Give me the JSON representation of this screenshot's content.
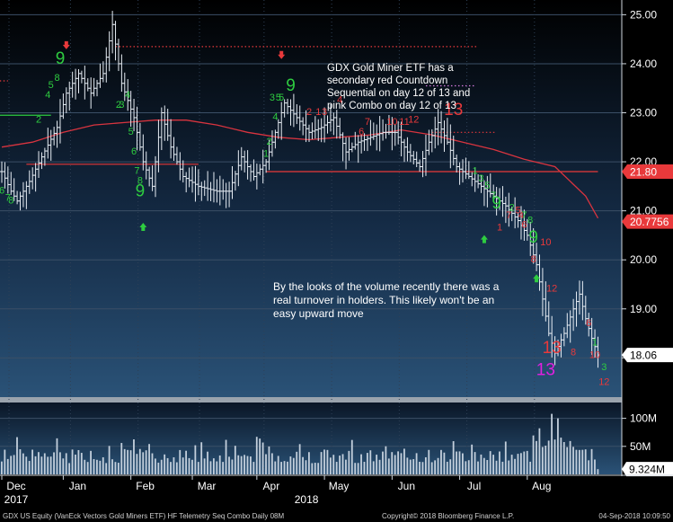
{
  "chart_data": {
    "type": "ohlc",
    "price_panel": {
      "ylim": [
        17.2,
        25.3
      ],
      "ticks": [
        "25.00",
        "24.00",
        "23.00",
        "22.00",
        "21.00",
        "20.00",
        "19.00",
        "18.00"
      ],
      "grid": true,
      "moving_average": [
        {
          "t": 0,
          "v": 22.3
        },
        {
          "t": 10,
          "v": 22.4
        },
        {
          "t": 20,
          "v": 22.6
        },
        {
          "t": 30,
          "v": 22.75
        },
        {
          "t": 40,
          "v": 22.8
        },
        {
          "t": 50,
          "v": 22.85
        },
        {
          "t": 60,
          "v": 22.85
        },
        {
          "t": 70,
          "v": 22.75
        },
        {
          "t": 80,
          "v": 22.6
        },
        {
          "t": 90,
          "v": 22.5
        },
        {
          "t": 100,
          "v": 22.45
        },
        {
          "t": 110,
          "v": 22.5
        },
        {
          "t": 120,
          "v": 22.55
        },
        {
          "t": 130,
          "v": 22.65
        },
        {
          "t": 140,
          "v": 22.55
        },
        {
          "t": 150,
          "v": 22.4
        },
        {
          "t": 160,
          "v": 22.25
        },
        {
          "t": 170,
          "v": 22.05
        },
        {
          "t": 180,
          "v": 21.9
        },
        {
          "t": 190,
          "v": 21.3
        },
        {
          "t": 194,
          "v": 20.85
        }
      ],
      "price_path": [
        {
          "t": 0,
          "v": 21.8
        },
        {
          "t": 3,
          "v": 21.4
        },
        {
          "t": 5,
          "v": 21.2
        },
        {
          "t": 9,
          "v": 21.6
        },
        {
          "t": 13,
          "v": 22.1
        },
        {
          "t": 18,
          "v": 22.7
        },
        {
          "t": 21,
          "v": 23.4
        },
        {
          "t": 25,
          "v": 23.8
        },
        {
          "t": 29,
          "v": 23.4
        },
        {
          "t": 33,
          "v": 23.8
        },
        {
          "t": 36,
          "v": 24.8
        },
        {
          "t": 39,
          "v": 23.6
        },
        {
          "t": 43,
          "v": 22.9
        },
        {
          "t": 46,
          "v": 22.0
        },
        {
          "t": 49,
          "v": 21.5
        },
        {
          "t": 52,
          "v": 23.0
        },
        {
          "t": 55,
          "v": 22.3
        },
        {
          "t": 59,
          "v": 21.7
        },
        {
          "t": 64,
          "v": 21.5
        },
        {
          "t": 70,
          "v": 21.4
        },
        {
          "t": 74,
          "v": 21.4
        },
        {
          "t": 78,
          "v": 22.1
        },
        {
          "t": 82,
          "v": 21.7
        },
        {
          "t": 86,
          "v": 22.0
        },
        {
          "t": 89,
          "v": 22.6
        },
        {
          "t": 92,
          "v": 23.2
        },
        {
          "t": 96,
          "v": 22.9
        },
        {
          "t": 100,
          "v": 22.6
        },
        {
          "t": 104,
          "v": 22.7
        },
        {
          "t": 108,
          "v": 22.9
        },
        {
          "t": 112,
          "v": 22.2
        },
        {
          "t": 116,
          "v": 22.4
        },
        {
          "t": 120,
          "v": 22.5
        },
        {
          "t": 124,
          "v": 22.6
        },
        {
          "t": 128,
          "v": 22.6
        },
        {
          "t": 132,
          "v": 22.2
        },
        {
          "t": 136,
          "v": 21.9
        },
        {
          "t": 139,
          "v": 22.4
        },
        {
          "t": 142,
          "v": 22.8
        },
        {
          "t": 145,
          "v": 22.4
        },
        {
          "t": 148,
          "v": 21.9
        },
        {
          "t": 152,
          "v": 21.7
        },
        {
          "t": 156,
          "v": 21.5
        },
        {
          "t": 160,
          "v": 21.3
        },
        {
          "t": 164,
          "v": 21.1
        },
        {
          "t": 168,
          "v": 20.8
        },
        {
          "t": 171,
          "v": 20.5
        },
        {
          "t": 174,
          "v": 19.9
        },
        {
          "t": 176,
          "v": 19.2
        },
        {
          "t": 178,
          "v": 18.5
        },
        {
          "t": 180,
          "v": 18.1
        },
        {
          "t": 183,
          "v": 18.5
        },
        {
          "t": 186,
          "v": 19.0
        },
        {
          "t": 188,
          "v": 19.3
        },
        {
          "t": 190,
          "v": 18.8
        },
        {
          "t": 192,
          "v": 18.4
        },
        {
          "t": 194,
          "v": 18.06
        }
      ],
      "levels": [
        {
          "t0": -3,
          "t1": 16,
          "v": 22.95,
          "color": "#2ecc40",
          "style": "solid"
        },
        {
          "t0": -3,
          "t1": 2,
          "v": 23.65,
          "color": "#e8393b",
          "style": "dotted"
        },
        {
          "t0": 8,
          "t1": 64,
          "v": 21.95,
          "color": "#e8393b",
          "style": "solid"
        },
        {
          "t0": 37,
          "t1": 155,
          "v": 24.35,
          "color": "#e8393b",
          "style": "dotted"
        },
        {
          "t0": 86,
          "t1": 194,
          "v": 21.8,
          "color": "#e8393b",
          "style": "solid"
        },
        {
          "t0": 140,
          "t1": 161,
          "v": 22.6,
          "color": "#e8393b",
          "style": "dotted"
        },
        {
          "t0": 138,
          "t1": 154,
          "v": 23.55,
          "color": "#d67bdf",
          "style": "dotted"
        }
      ],
      "price_boxes": [
        {
          "value": "21.80",
          "v": 21.8,
          "bg": "#e8393b",
          "fg": "#ffffff"
        },
        {
          "value": "20.7756",
          "v": 20.78,
          "bg": "#e8393b",
          "fg": "#ffffff"
        },
        {
          "value": "18.06",
          "v": 18.06,
          "bg": "#ffffff",
          "fg": "#000000"
        }
      ]
    },
    "volume_panel": {
      "ticks": [
        "100M",
        "50M"
      ],
      "tick_values": [
        100,
        50
      ],
      "ylim": [
        0,
        125
      ],
      "last_box": "9.324M",
      "last_value": 9.324
    },
    "x_axis": {
      "months": [
        "Dec",
        "Jan",
        "Feb",
        "Mar",
        "Apr",
        "May",
        "Jun",
        "Jul",
        "Aug"
      ],
      "month_ticks": [
        0,
        20,
        42,
        62,
        83,
        105,
        127,
        149,
        171
      ],
      "years": [
        "2017",
        "2018"
      ]
    },
    "sequential_labels": [
      {
        "text": "6",
        "t": 0,
        "v": 21.35,
        "color": "#2ecc40"
      },
      {
        "text": "7",
        "t": 2,
        "v": 21.2,
        "color": "#2ecc40"
      },
      {
        "text": "8",
        "t": 3,
        "v": 21.15,
        "color": "#2ecc40"
      },
      {
        "text": "9",
        "t": 19,
        "v": 24.0,
        "color": "#2ecc40",
        "big": true
      },
      {
        "text": "2",
        "t": 12,
        "v": 22.8,
        "color": "#2ecc40"
      },
      {
        "text": "4",
        "t": 15,
        "v": 23.3,
        "color": "#2ecc40"
      },
      {
        "text": "5",
        "t": 16,
        "v": 23.5,
        "color": "#2ecc40"
      },
      {
        "text": "8",
        "t": 18,
        "v": 23.65,
        "color": "#2ecc40"
      },
      {
        "text": "2",
        "t": 38,
        "v": 23.1,
        "color": "#2ecc40"
      },
      {
        "text": "3",
        "t": 39,
        "v": 23.1,
        "color": "#2ecc40"
      },
      {
        "text": "4",
        "t": 41,
        "v": 23.3,
        "color": "#2ecc40"
      },
      {
        "text": "5",
        "t": 42,
        "v": 22.55,
        "color": "#2ecc40"
      },
      {
        "text": "6",
        "t": 43,
        "v": 22.15,
        "color": "#2ecc40"
      },
      {
        "text": "7",
        "t": 44,
        "v": 21.75,
        "color": "#2ecc40"
      },
      {
        "text": "8",
        "t": 45,
        "v": 21.55,
        "color": "#2ecc40"
      },
      {
        "text": "9",
        "t": 45,
        "v": 21.3,
        "color": "#2ecc40",
        "big": true
      },
      {
        "text": "1",
        "t": 86,
        "v": 22.1,
        "color": "#2ecc40"
      },
      {
        "text": "2",
        "t": 87,
        "v": 22.35,
        "color": "#2ecc40"
      },
      {
        "text": "4",
        "t": 89,
        "v": 22.85,
        "color": "#2ecc40"
      },
      {
        "text": "3",
        "t": 88,
        "v": 23.25,
        "color": "#2ecc40"
      },
      {
        "text": "5",
        "t": 90,
        "v": 23.25,
        "color": "#2ecc40"
      },
      {
        "text": "5",
        "t": 91,
        "v": 23.25,
        "color": "#2ecc40"
      },
      {
        "text": "9",
        "t": 94,
        "v": 23.45,
        "color": "#2ecc40",
        "big": true
      },
      {
        "text": "1",
        "t": 103,
        "v": 22.95,
        "color": "#e8393b"
      },
      {
        "text": "2",
        "t": 100,
        "v": 22.95,
        "color": "#e8393b"
      },
      {
        "text": "3",
        "t": 105,
        "v": 22.95,
        "color": "#e8393b"
      },
      {
        "text": "4",
        "t": 110,
        "v": 23.2,
        "color": "#e8393b"
      },
      {
        "text": "6",
        "t": 117,
        "v": 22.55,
        "color": "#e8393b"
      },
      {
        "text": "7",
        "t": 119,
        "v": 22.75,
        "color": "#e8393b"
      },
      {
        "text": "10",
        "t": 127,
        "v": 22.75,
        "color": "#e8393b"
      },
      {
        "text": "11",
        "t": 131,
        "v": 22.75,
        "color": "#e8393b"
      },
      {
        "text": "12",
        "t": 134,
        "v": 22.8,
        "color": "#e8393b"
      },
      {
        "text": "13",
        "t": 147,
        "v": 22.95,
        "color": "#e8393b",
        "big": true
      },
      {
        "text": "1",
        "t": 154,
        "v": 21.75,
        "color": "#2ecc40"
      },
      {
        "text": "3",
        "t": 156,
        "v": 21.6,
        "color": "#2ecc40"
      },
      {
        "text": "5",
        "t": 158,
        "v": 21.45,
        "color": "#2ecc40"
      },
      {
        "text": "7",
        "t": 160,
        "v": 21.25,
        "color": "#2ecc40"
      },
      {
        "text": "9",
        "t": 161,
        "v": 21.05,
        "color": "#2ecc40",
        "big": true
      },
      {
        "text": "1",
        "t": 162,
        "v": 20.6,
        "color": "#e8393b"
      },
      {
        "text": "2",
        "t": 166,
        "v": 21.0,
        "color": "#2ecc40"
      },
      {
        "text": "4",
        "t": 169,
        "v": 20.85,
        "color": "#e8393b"
      },
      {
        "text": "5",
        "t": 168,
        "v": 20.95,
        "color": "#e8393b"
      },
      {
        "text": "6",
        "t": 170,
        "v": 20.65,
        "color": "#e8393b"
      },
      {
        "text": "7",
        "t": 165,
        "v": 20.85,
        "color": "#e8393b"
      },
      {
        "text": "7",
        "t": 170,
        "v": 20.85,
        "color": "#2ecc40"
      },
      {
        "text": "8",
        "t": 172,
        "v": 20.75,
        "color": "#2ecc40"
      },
      {
        "text": "9",
        "t": 173,
        "v": 20.35,
        "color": "#2ecc40",
        "big": true
      },
      {
        "text": "10",
        "t": 177,
        "v": 20.3,
        "color": "#e8393b"
      },
      {
        "text": "8",
        "t": 173,
        "v": 19.95,
        "color": "#e8393b"
      },
      {
        "text": "12",
        "t": 179,
        "v": 19.35,
        "color": "#e8393b"
      },
      {
        "text": "13",
        "t": 179,
        "v": 18.1,
        "color": "#e8393b",
        "big": true
      },
      {
        "text": "8",
        "t": 186,
        "v": 18.05,
        "color": "#e8393b"
      },
      {
        "text": "6",
        "t": 191,
        "v": 18.65,
        "color": "#e8393b"
      },
      {
        "text": "1",
        "t": 193,
        "v": 18.25,
        "color": "#2ecc40"
      },
      {
        "text": "10",
        "t": 193,
        "v": 18.0,
        "color": "#e8393b"
      },
      {
        "text": "3",
        "t": 196,
        "v": 17.75,
        "color": "#2ecc40"
      },
      {
        "text": "12",
        "t": 196,
        "v": 17.45,
        "color": "#e8393b"
      },
      {
        "text": "13",
        "t": 177,
        "v": 17.65,
        "color": "#e020e0",
        "big": true
      }
    ],
    "arrows": [
      {
        "dir": "down",
        "t": 21,
        "v": 24.35,
        "color": "#e8393b"
      },
      {
        "dir": "down",
        "t": 91,
        "v": 24.15,
        "color": "#e8393b"
      },
      {
        "dir": "up",
        "t": 46,
        "v": 20.7,
        "color": "#2ecc40"
      },
      {
        "dir": "up",
        "t": 157,
        "v": 20.45,
        "color": "#2ecc40"
      },
      {
        "dir": "up",
        "t": 174,
        "v": 19.65,
        "color": "#2ecc40"
      }
    ]
  },
  "annotations": {
    "top_note": "GDX Gold Miner ETF has a secondary red Countdown Sequential on day 12 of 13 and pink Combo on day 12 of 13",
    "volume_note": "By the looks of the volume recently there was a real turnover in holders.  This likely won't be an easy upward move"
  },
  "footer": {
    "left": "GDX US Equity (VanEck Vectors Gold Miners ETF) HF Telemetry Seq Combo  Daily 08M",
    "center": "Copyright© 2018 Bloomberg Finance L.P.",
    "right": "04-Sep-2018 10:09:50"
  }
}
